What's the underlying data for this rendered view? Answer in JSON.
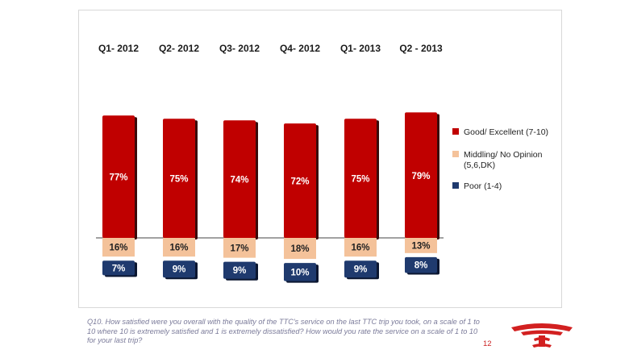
{
  "chart_data": {
    "type": "bar",
    "stacked": true,
    "categories": [
      "Q1- 2012",
      "Q2- 2012",
      "Q3- 2012",
      "Q4- 2012",
      "Q1- 2013",
      "Q2 - 2013"
    ],
    "series": [
      {
        "name": "Good/ Excellent (7-10)",
        "values": [
          77,
          75,
          74,
          72,
          75,
          79
        ],
        "labels": [
          "77%",
          "75%",
          "74%",
          "72%",
          "75%",
          "79%"
        ],
        "color": "#c00000",
        "label_color": "#ffffff"
      },
      {
        "name": "Middling/ No Opinion (5,6,DK)",
        "values": [
          16,
          16,
          17,
          18,
          16,
          13
        ],
        "labels": [
          "16%",
          "16%",
          "17%",
          "18%",
          "16%",
          "13%"
        ],
        "color": "#f4c29a",
        "label_color": "#222222"
      },
      {
        "name": "Poor (1-4)",
        "values": [
          7,
          9,
          9,
          10,
          9,
          8
        ],
        "labels": [
          "7%",
          "9%",
          "9%",
          "10%",
          "9%",
          "8%"
        ],
        "color": "#1f3a6e",
        "label_color": "#ffffff"
      }
    ],
    "legend_position": "right",
    "grid": false
  },
  "footnote": "Q10. How satisfied were you overall with the quality of the TTC's service on the last TTC trip you took, on a scale of 1 to 10 where 10 is extremely satisfied and 1 is extremely dissatisfied? How would you rate the service on a scale of 1 to 10 for your last trip?",
  "page_number": "12",
  "logo": "ttc-logo"
}
